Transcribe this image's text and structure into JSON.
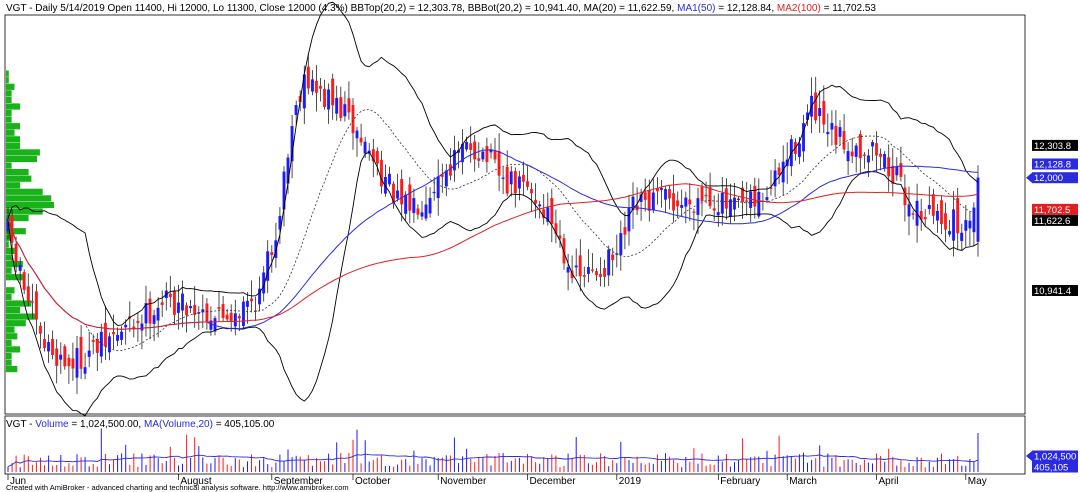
{
  "header": {
    "symbol": "VGT - Daily 5/14/2019 Open 11400, Hi 12000, Lo 11300, Close 12000 (4.3%)",
    "bbtop": "BBTop(20,2) = 12,303.78,",
    "bbbot": "BBBot(20,2) = 10,941.40,",
    "ma20": "MA(20) = 11,622.59,",
    "ma1_name": "MA1(50)",
    "ma1_value": "= 12,128.84,",
    "ma2_name": "MA2(100)",
    "ma2_value": "= 11,702.53"
  },
  "volume_header": {
    "symbol": "VGT -",
    "vol_name": "Volume",
    "vol_value": "= 1,024,500.00,",
    "mavol_name": "MA(Volume,20)",
    "mavol_value": "= 405,105.00"
  },
  "credit": "Created with AmiBroker - advanced charting and technical analysis software. http://www.amibroker.com",
  "colors": {
    "up": "#1a1aff",
    "down": "#ff1a1a",
    "bb": "#000000",
    "ma20": "#333333",
    "ma50": "#2a2ae0",
    "ma100": "#e02020",
    "profile": "#00aa00"
  },
  "chart_data": [
    {
      "type": "candlestick",
      "panel": "price",
      "y_range": [
        9800,
        13500
      ],
      "x_labels": [
        {
          "label": "Jun",
          "index": 0
        },
        {
          "label": "August",
          "index": 42
        },
        {
          "label": "September",
          "index": 65
        },
        {
          "label": "October",
          "index": 85
        },
        {
          "label": "November",
          "index": 106
        },
        {
          "label": "December",
          "index": 128
        },
        {
          "label": "2019",
          "index": 150
        },
        {
          "label": "February",
          "index": 175
        },
        {
          "label": "March",
          "index": 192
        },
        {
          "label": "April",
          "index": 214
        },
        {
          "label": "May",
          "index": 236
        }
      ],
      "price_anchors": [
        [
          0,
          11500
        ],
        [
          3,
          11100
        ],
        [
          8,
          10450
        ],
        [
          15,
          10250
        ],
        [
          22,
          10400
        ],
        [
          30,
          10600
        ],
        [
          38,
          10850
        ],
        [
          45,
          10800
        ],
        [
          52,
          10700
        ],
        [
          58,
          10780
        ],
        [
          62,
          10900
        ],
        [
          66,
          11500
        ],
        [
          70,
          12500
        ],
        [
          73,
          13000
        ],
        [
          76,
          12800
        ],
        [
          82,
          12650
        ],
        [
          88,
          12300
        ],
        [
          92,
          12050
        ],
        [
          97,
          11700
        ],
        [
          102,
          11800
        ],
        [
          108,
          12100
        ],
        [
          114,
          12300
        ],
        [
          118,
          12200
        ],
        [
          122,
          11950
        ],
        [
          128,
          11900
        ],
        [
          134,
          11600
        ],
        [
          140,
          11050
        ],
        [
          144,
          11100
        ],
        [
          150,
          11250
        ],
        [
          154,
          11700
        ],
        [
          160,
          11800
        ],
        [
          166,
          11750
        ],
        [
          172,
          11850
        ],
        [
          178,
          11700
        ],
        [
          184,
          11750
        ],
        [
          188,
          11900
        ],
        [
          193,
          12250
        ],
        [
          198,
          12650
        ],
        [
          202,
          12400
        ],
        [
          208,
          12300
        ],
        [
          214,
          12250
        ],
        [
          218,
          12050
        ],
        [
          222,
          11750
        ],
        [
          228,
          11650
        ],
        [
          232,
          11600
        ],
        [
          236,
          11500
        ],
        [
          239,
          12000
        ]
      ],
      "series": [
        {
          "name": "BBTop(20,2)",
          "last": 12303.78,
          "label": "12,303.8"
        },
        {
          "name": "MA1(50)",
          "last": 12128.84,
          "label": "12,128.8"
        },
        {
          "name": "Close",
          "last": 12000,
          "label": "12,000"
        },
        {
          "name": "MA2(100)",
          "last": 11702.53,
          "label": "11,702.5"
        },
        {
          "name": "MA(20)",
          "last": 11622.59,
          "label": "11,622.6"
        },
        {
          "name": "BBBot(20,2)",
          "last": 10941.4,
          "label": "10,941.4"
        }
      ]
    },
    {
      "type": "bar",
      "panel": "volume",
      "series": [
        {
          "name": "Volume",
          "last": 1024500,
          "label": "1,024,500"
        },
        {
          "name": "MA(Volume,20)",
          "last": 405105,
          "label": "405,105"
        }
      ]
    }
  ]
}
